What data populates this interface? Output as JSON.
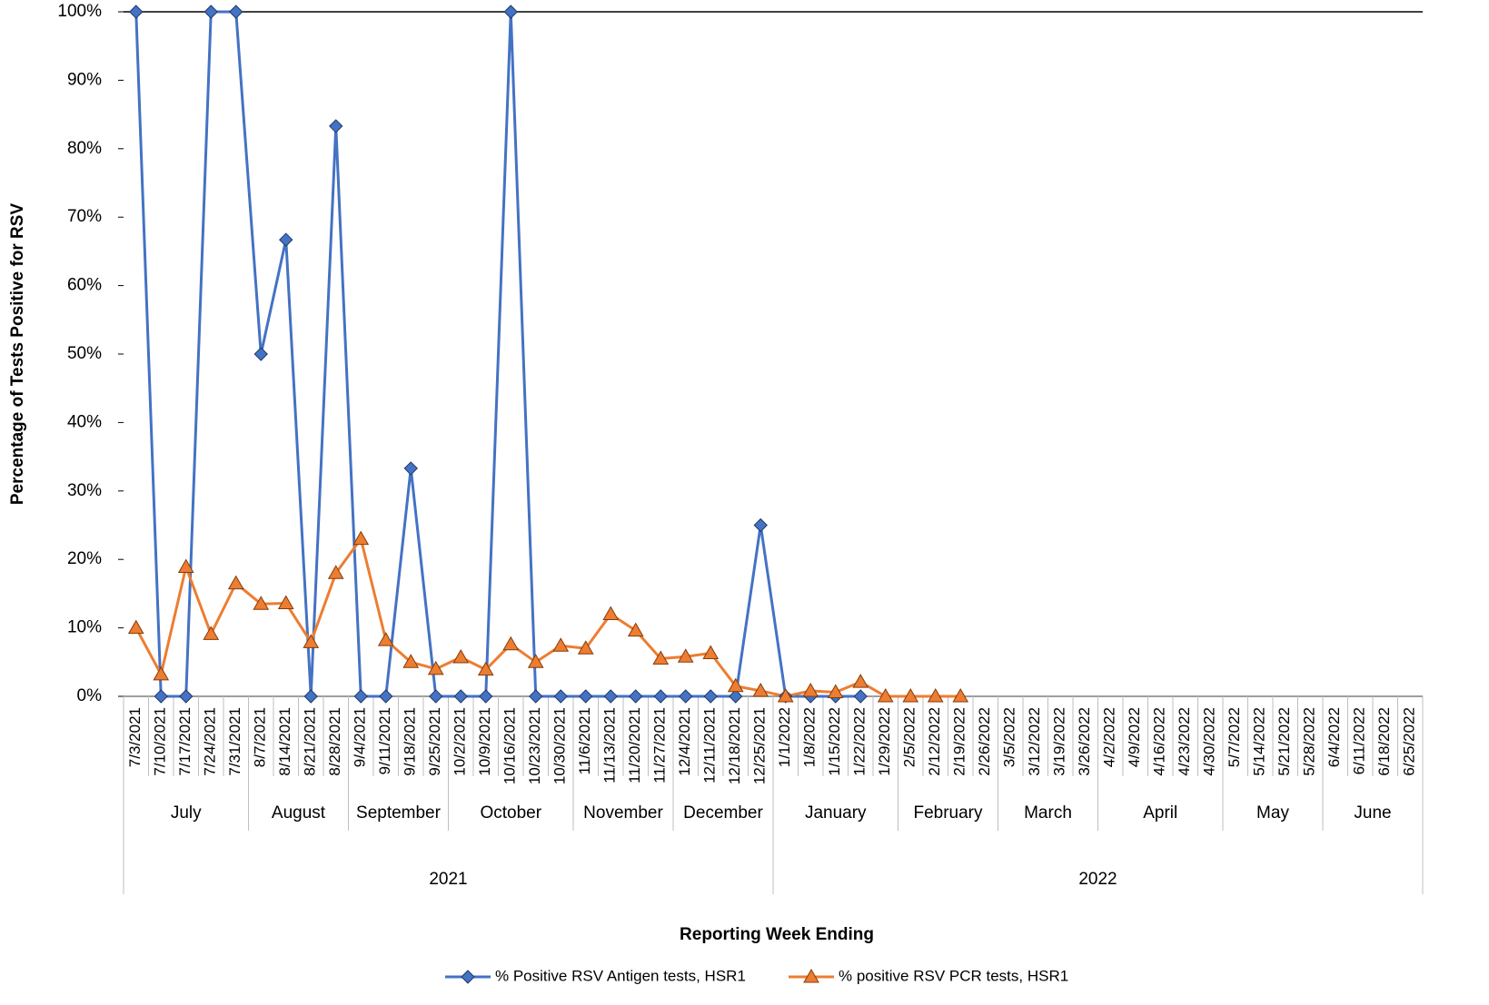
{
  "chart_data": {
    "type": "line",
    "y_label": "Percentage of Tests Positive for RSV",
    "x_label": "Reporting Week Ending",
    "categories": [
      "7/3/2021",
      "7/10/2021",
      "7/17/2021",
      "7/24/2021",
      "7/31/2021",
      "8/7/2021",
      "8/14/2021",
      "8/21/2021",
      "8/28/2021",
      "9/4/2021",
      "9/11/2021",
      "9/18/2021",
      "9/25/2021",
      "10/2/2021",
      "10/9/2021",
      "10/16/2021",
      "10/23/2021",
      "10/30/2021",
      "11/6/2021",
      "11/13/2021",
      "11/20/2021",
      "11/27/2021",
      "12/4/2021",
      "12/11/2021",
      "12/18/2021",
      "12/25/2021",
      "1/1/2022",
      "1/8/2022",
      "1/15/2022",
      "1/22/2022",
      "1/29/2022",
      "2/5/2022",
      "2/12/2022",
      "2/19/2022",
      "2/26/2022",
      "3/5/2022",
      "3/12/2022",
      "3/19/2022",
      "3/26/2022",
      "4/2/2022",
      "4/9/2022",
      "4/16/2022",
      "4/23/2022",
      "4/30/2022",
      "5/7/2022",
      "5/14/2022",
      "5/21/2022",
      "5/28/2022",
      "6/4/2022",
      "6/11/2022",
      "6/18/2022",
      "6/25/2022"
    ],
    "months": [
      {
        "label": "July",
        "span": 5
      },
      {
        "label": "August",
        "span": 4
      },
      {
        "label": "September",
        "span": 4
      },
      {
        "label": "October",
        "span": 5
      },
      {
        "label": "November",
        "span": 4
      },
      {
        "label": "December",
        "span": 4
      },
      {
        "label": "January",
        "span": 5
      },
      {
        "label": "February",
        "span": 4
      },
      {
        "label": "March",
        "span": 4
      },
      {
        "label": "April",
        "span": 5
      },
      {
        "label": "May",
        "span": 4
      },
      {
        "label": "June",
        "span": 4
      }
    ],
    "years": [
      {
        "label": "2021",
        "span": 26
      },
      {
        "label": "2022",
        "span": 26
      }
    ],
    "series": [
      {
        "name": "% Positive RSV Antigen tests, HSR1",
        "color": "#4472c4",
        "marker": "diamond",
        "values": [
          100,
          0,
          0,
          100,
          100,
          50,
          66.7,
          0,
          83.3,
          0,
          0,
          33.3,
          0,
          0,
          0,
          100,
          0,
          0,
          0,
          0,
          0,
          0,
          0,
          0,
          0,
          25,
          0,
          0,
          0,
          0,
          null,
          null,
          null,
          null,
          null,
          null,
          null,
          null,
          null,
          null,
          null,
          null,
          null,
          null,
          null,
          null,
          null,
          null,
          null,
          null,
          null,
          null
        ]
      },
      {
        "name": "% positive RSV PCR tests, HSR1",
        "color": "#ed7d31",
        "marker": "triangle",
        "values": [
          10,
          3.2,
          18.9,
          9.1,
          16.5,
          13.5,
          13.6,
          7.9,
          18,
          23,
          8.2,
          5,
          4,
          5.7,
          3.9,
          7.6,
          5,
          7.4,
          7,
          12,
          9.6,
          5.5,
          5.8,
          6.3,
          1.5,
          0.8,
          0,
          0.8,
          0.6,
          2.1,
          0,
          0,
          0,
          0,
          null,
          null,
          null,
          null,
          null,
          null,
          null,
          null,
          null,
          null,
          null,
          null,
          null,
          null,
          null,
          null,
          null,
          null
        ]
      }
    ],
    "ylim": [
      0,
      100
    ],
    "yticks": [
      {
        "value": 0,
        "label": "0%"
      },
      {
        "value": 10,
        "label": "10%"
      },
      {
        "value": 20,
        "label": "20%"
      },
      {
        "value": 30,
        "label": "30%"
      },
      {
        "value": 40,
        "label": "40%"
      },
      {
        "value": 50,
        "label": "50%"
      },
      {
        "value": 60,
        "label": "60%"
      },
      {
        "value": 70,
        "label": "70%"
      },
      {
        "value": 80,
        "label": "80%"
      },
      {
        "value": 90,
        "label": "90%"
      },
      {
        "value": 100,
        "label": "100%"
      }
    ],
    "grid": false
  }
}
